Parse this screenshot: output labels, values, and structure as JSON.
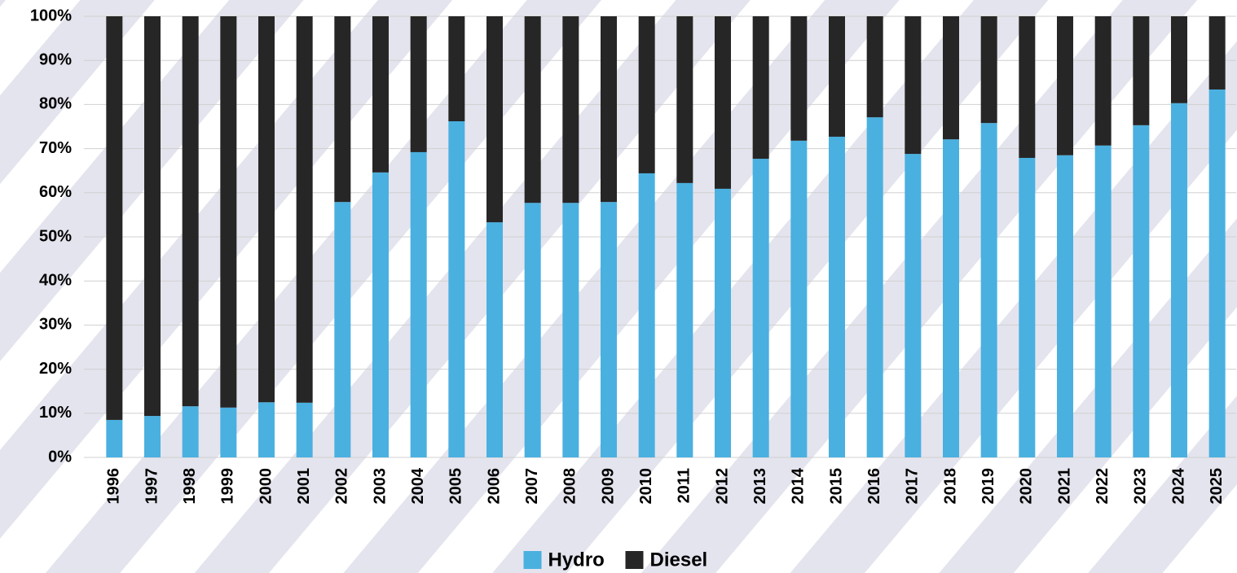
{
  "chart_data": {
    "type": "stacked_bar",
    "categories": [
      "1996",
      "1997",
      "1998",
      "1999",
      "2000",
      "2001",
      "2002",
      "2003",
      "2004",
      "2005",
      "2006",
      "2007",
      "2008",
      "2009",
      "2010",
      "2011",
      "2012",
      "2013",
      "2014",
      "2015",
      "2016",
      "2017",
      "2018",
      "2019",
      "2020",
      "2021",
      "2022",
      "2023",
      "2024",
      "2025"
    ],
    "series": [
      {
        "name": "Hydro",
        "color": "#4ab0e0",
        "values": [
          8.5,
          9.4,
          11.6,
          11.3,
          12.5,
          12.4,
          57.9,
          64.6,
          69.2,
          76.2,
          53.3,
          57.7,
          57.7,
          57.9,
          64.4,
          62.2,
          60.9,
          67.7,
          71.8,
          72.7,
          77.1,
          68.8,
          72.1,
          75.8,
          67.9,
          68.5,
          70.7,
          75.3,
          80.3,
          83.4
        ]
      },
      {
        "name": "Diesel",
        "color": "#262626",
        "values": [
          91.5,
          90.6,
          88.4,
          88.7,
          87.5,
          87.6,
          42.1,
          35.4,
          30.8,
          23.8,
          46.7,
          42.3,
          42.3,
          42.1,
          35.6,
          37.8,
          39.1,
          32.3,
          28.2,
          27.3,
          22.9,
          31.2,
          27.9,
          24.2,
          32.1,
          31.5,
          29.3,
          24.7,
          19.7,
          16.6
        ]
      }
    ],
    "ylim": [
      0,
      100
    ],
    "yticks": [
      {
        "value": 0,
        "label": "0%"
      },
      {
        "value": 10,
        "label": "10%"
      },
      {
        "value": 20,
        "label": "20%"
      },
      {
        "value": 30,
        "label": "30%"
      },
      {
        "value": 40,
        "label": "40%"
      },
      {
        "value": 50,
        "label": "50%"
      },
      {
        "value": 60,
        "label": "60%"
      },
      {
        "value": 70,
        "label": "70%"
      },
      {
        "value": 80,
        "label": "80%"
      },
      {
        "value": 90,
        "label": "90%"
      },
      {
        "value": 100,
        "label": "100%"
      }
    ],
    "grid": true,
    "legend": "bottom"
  }
}
